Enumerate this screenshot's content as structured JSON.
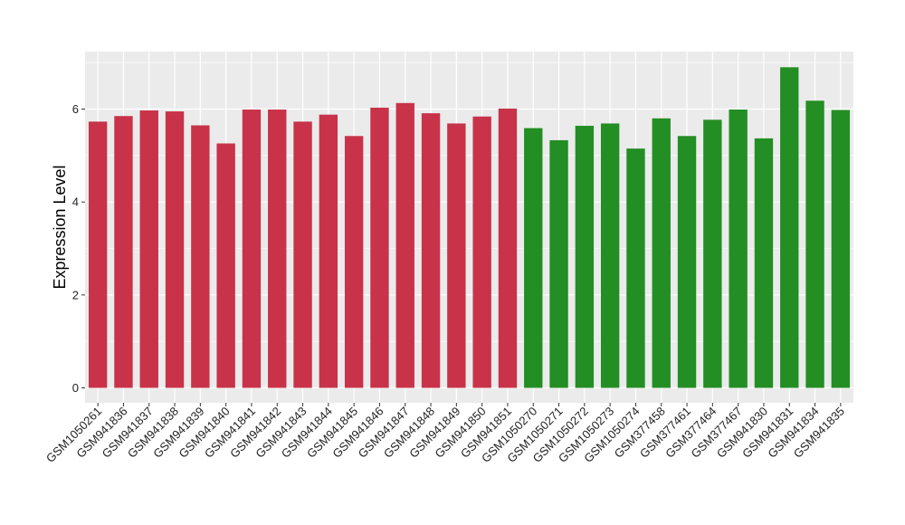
{
  "chart_data": {
    "type": "bar",
    "title": "",
    "xlabel": "",
    "ylabel": "Expression Level",
    "ylim": [
      0,
      7.2
    ],
    "yticks": [
      0,
      2,
      4,
      6
    ],
    "grid": true,
    "legend": "none",
    "categories": [
      "GSM1050261",
      "GSM941836",
      "GSM941837",
      "GSM941838",
      "GSM941839",
      "GSM941840",
      "GSM941841",
      "GSM941842",
      "GSM941843",
      "GSM941844",
      "GSM941845",
      "GSM941846",
      "GSM941847",
      "GSM941848",
      "GSM941849",
      "GSM941850",
      "GSM941851",
      "GSM1050270",
      "GSM1050271",
      "GSM1050272",
      "GSM1050273",
      "GSM1050274",
      "GSM377458",
      "GSM377461",
      "GSM377464",
      "GSM377467",
      "GSM941830",
      "GSM941831",
      "GSM941834",
      "GSM941835"
    ],
    "values": [
      5.73,
      5.85,
      5.97,
      5.95,
      5.65,
      5.26,
      5.99,
      5.99,
      5.73,
      5.88,
      5.42,
      6.03,
      6.13,
      5.91,
      5.69,
      5.84,
      6.01,
      5.59,
      5.33,
      5.64,
      5.69,
      5.15,
      5.8,
      5.42,
      5.77,
      5.99,
      5.37,
      6.9,
      6.18,
      5.98
    ],
    "group_colors": [
      "#c8334a",
      "#c8334a",
      "#c8334a",
      "#c8334a",
      "#c8334a",
      "#c8334a",
      "#c8334a",
      "#c8334a",
      "#c8334a",
      "#c8334a",
      "#c8334a",
      "#c8334a",
      "#c8334a",
      "#c8334a",
      "#c8334a",
      "#c8334a",
      "#c8334a",
      "#238e23",
      "#238e23",
      "#238e23",
      "#238e23",
      "#238e23",
      "#238e23",
      "#238e23",
      "#238e23",
      "#238e23",
      "#238e23",
      "#238e23",
      "#238e23",
      "#238e23"
    ],
    "panel_background": "#ebebeb",
    "gridline_color": "#ffffff"
  }
}
